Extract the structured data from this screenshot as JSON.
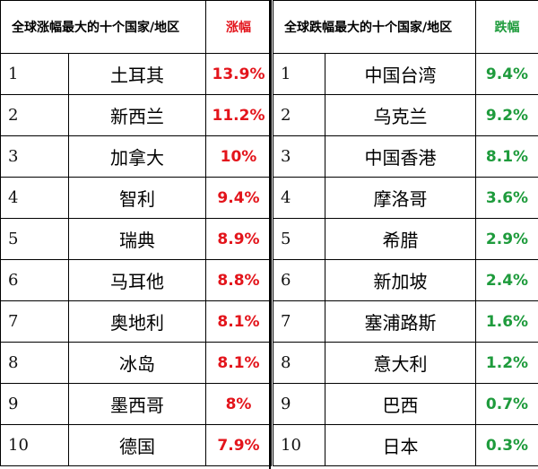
{
  "gainers": {
    "header_title": "全球涨幅最大的十个国家/地区",
    "header_change": "涨幅",
    "color": "#e3141b",
    "rows": [
      {
        "rank": "1",
        "name": "土耳其",
        "change": "13.9%"
      },
      {
        "rank": "2",
        "name": "新西兰",
        "change": "11.2%"
      },
      {
        "rank": "3",
        "name": "加拿大",
        "change": "10%"
      },
      {
        "rank": "4",
        "name": "智利",
        "change": "9.4%"
      },
      {
        "rank": "5",
        "name": "瑞典",
        "change": "8.9%"
      },
      {
        "rank": "6",
        "name": "马耳他",
        "change": "8.8%"
      },
      {
        "rank": "7",
        "name": "奥地利",
        "change": "8.1%"
      },
      {
        "rank": "8",
        "name": "冰岛",
        "change": "8.1%"
      },
      {
        "rank": "9",
        "name": "墨西哥",
        "change": "8%"
      },
      {
        "rank": "10",
        "name": "德国",
        "change": "7.9%"
      }
    ]
  },
  "losers": {
    "header_title": "全球跌幅最大的十个国家/地区",
    "header_change": "跌幅",
    "color": "#1e9b3c",
    "rows": [
      {
        "rank": "1",
        "name": "中国台湾",
        "change": "9.4%"
      },
      {
        "rank": "2",
        "name": "乌克兰",
        "change": "9.2%"
      },
      {
        "rank": "3",
        "name": "中国香港",
        "change": "8.1%"
      },
      {
        "rank": "4",
        "name": "摩洛哥",
        "change": "3.6%"
      },
      {
        "rank": "5",
        "name": "希腊",
        "change": "2.9%"
      },
      {
        "rank": "6",
        "name": "新加坡",
        "change": "2.4%"
      },
      {
        "rank": "7",
        "name": "塞浦路斯",
        "change": "1.6%"
      },
      {
        "rank": "8",
        "name": "意大利",
        "change": "1.2%"
      },
      {
        "rank": "9",
        "name": "巴西",
        "change": "0.7%"
      },
      {
        "rank": "10",
        "name": "日本",
        "change": "0.3%"
      }
    ]
  }
}
